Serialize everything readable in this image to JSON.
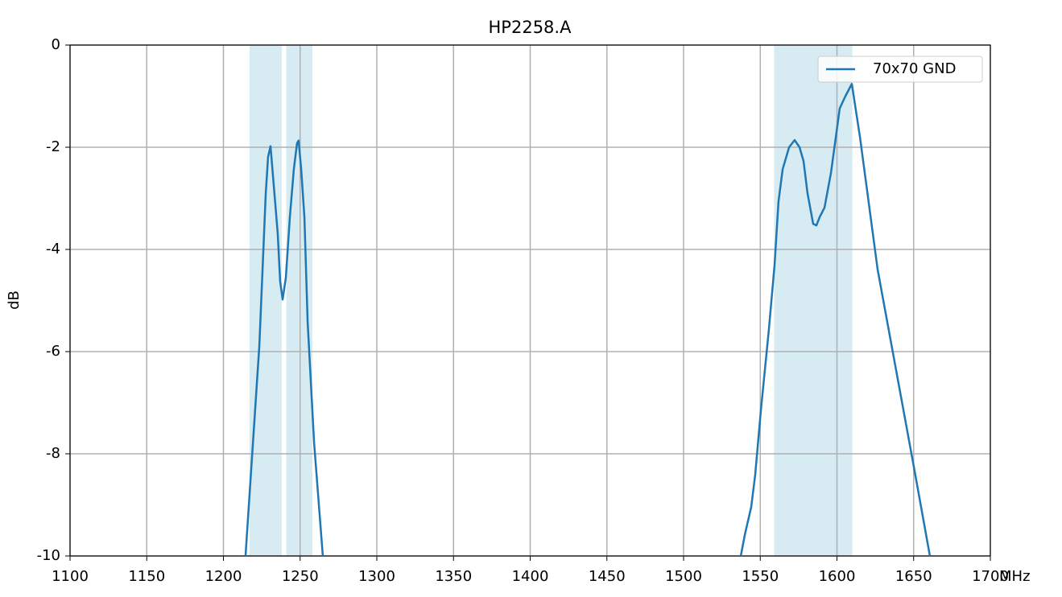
{
  "chart_data": {
    "type": "line",
    "title": "HP2258.A",
    "xlabel": "MHz",
    "ylabel": "dB",
    "x": [
      1214.4,
      1223.4,
      1227.6,
      1229.1,
      1230.7,
      1232.8,
      1235.4,
      1237,
      1238.6,
      1240.7,
      1243.3,
      1245.9,
      1248,
      1249,
      1250.7,
      1252.8,
      1254.9,
      1259.1,
      1264.8,
      1400,
      1537.3,
      1539.9,
      1544.1,
      1546.7,
      1550.4,
      1555.6,
      1559.3,
      1561.9,
      1564.6,
      1568.8,
      1572.4,
      1575.6,
      1578.2,
      1580.8,
      1584.5,
      1586.6,
      1588.7,
      1591.9,
      1596.1,
      1601.8,
      1605.5,
      1609.7,
      1615,
      1626.5,
      1650.1,
      1660.6
    ],
    "series": [
      {
        "name": "70x70 GND",
        "color": "#1f77b4",
        "values": [
          -10,
          -5.89,
          -2.9,
          -2.19,
          -1.98,
          -2.74,
          -3.69,
          -4.63,
          -4.98,
          -4.55,
          -3.37,
          -2.43,
          -1.92,
          -1.87,
          -2.43,
          -3.37,
          -5.42,
          -7.78,
          -10,
          null,
          -10,
          -9.59,
          -9.04,
          -8.41,
          -7.15,
          -5.57,
          -4.31,
          -3.06,
          -2.43,
          -2.0,
          -1.86,
          -2.0,
          -2.27,
          -2.9,
          -3.5,
          -3.53,
          -3.37,
          -3.18,
          -2.5,
          -1.24,
          -1.0,
          -0.76,
          -1.8,
          -4.39,
          -8.25,
          -10
        ]
      }
    ],
    "bands": [
      [
        1217,
        1238
      ],
      [
        1241,
        1258
      ],
      [
        1559,
        1610
      ]
    ],
    "band_color": "#add8e6",
    "xlim": [
      1100,
      1700
    ],
    "xticks": [
      1100,
      1150,
      1200,
      1250,
      1300,
      1350,
      1400,
      1450,
      1500,
      1550,
      1600,
      1650,
      1700
    ],
    "ylim": [
      -10,
      0
    ],
    "yticks": [
      -10,
      -8,
      -6,
      -4,
      -2,
      0
    ],
    "grid": true,
    "legend": "upper right"
  }
}
